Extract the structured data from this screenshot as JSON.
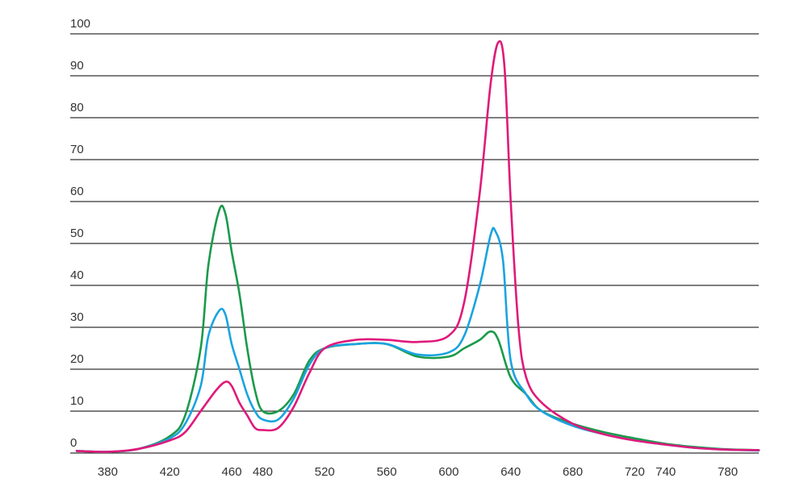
{
  "chart_data": {
    "type": "line",
    "title": "",
    "xlabel": "",
    "ylabel": "",
    "xlim": [
      360,
      800
    ],
    "ylim": [
      0,
      100
    ],
    "x_ticks": [
      380,
      420,
      460,
      480,
      520,
      560,
      600,
      640,
      680,
      720,
      740,
      780
    ],
    "y_ticks": [
      0,
      10,
      20,
      30,
      40,
      50,
      60,
      70,
      80,
      90,
      100
    ],
    "grid": "horizontal",
    "legend": "none",
    "series": [
      {
        "color": "#1a9a4a",
        "points": [
          [
            360,
            0.5
          ],
          [
            380,
            0.3
          ],
          [
            400,
            1
          ],
          [
            420,
            4
          ],
          [
            430,
            9
          ],
          [
            440,
            25
          ],
          [
            445,
            45
          ],
          [
            452,
            58
          ],
          [
            456,
            57
          ],
          [
            460,
            48
          ],
          [
            465,
            38
          ],
          [
            470,
            25
          ],
          [
            475,
            15
          ],
          [
            480,
            10
          ],
          [
            490,
            10
          ],
          [
            500,
            14
          ],
          [
            510,
            22
          ],
          [
            520,
            25
          ],
          [
            540,
            26
          ],
          [
            560,
            26
          ],
          [
            580,
            23
          ],
          [
            600,
            23
          ],
          [
            610,
            25
          ],
          [
            620,
            27
          ],
          [
            627,
            29
          ],
          [
            632,
            27
          ],
          [
            640,
            18
          ],
          [
            650,
            14
          ],
          [
            660,
            10
          ],
          [
            680,
            7
          ],
          [
            700,
            5
          ],
          [
            720,
            3.5
          ],
          [
            740,
            2.2
          ],
          [
            760,
            1.4
          ],
          [
            780,
            0.9
          ],
          [
            800,
            0.7
          ]
        ]
      },
      {
        "color": "#1aa3e0",
        "points": [
          [
            360,
            0.5
          ],
          [
            380,
            0.3
          ],
          [
            400,
            1
          ],
          [
            420,
            3.5
          ],
          [
            430,
            7
          ],
          [
            440,
            16
          ],
          [
            445,
            28
          ],
          [
            452,
            34
          ],
          [
            456,
            33
          ],
          [
            460,
            26
          ],
          [
            465,
            20
          ],
          [
            470,
            14
          ],
          [
            475,
            10
          ],
          [
            480,
            8
          ],
          [
            490,
            8
          ],
          [
            500,
            13
          ],
          [
            510,
            21
          ],
          [
            520,
            25
          ],
          [
            540,
            26
          ],
          [
            560,
            26
          ],
          [
            580,
            23.5
          ],
          [
            600,
            24
          ],
          [
            610,
            28
          ],
          [
            620,
            40
          ],
          [
            627,
            52
          ],
          [
            630,
            53
          ],
          [
            635,
            46
          ],
          [
            640,
            22
          ],
          [
            650,
            14
          ],
          [
            660,
            10
          ],
          [
            680,
            6.5
          ],
          [
            700,
            4.5
          ],
          [
            720,
            3
          ],
          [
            740,
            2
          ],
          [
            760,
            1.2
          ],
          [
            780,
            0.8
          ],
          [
            800,
            0.6
          ]
        ]
      },
      {
        "color": "#e0197a",
        "points": [
          [
            360,
            0.5
          ],
          [
            380,
            0.3
          ],
          [
            400,
            1
          ],
          [
            420,
            3
          ],
          [
            430,
            5
          ],
          [
            440,
            10
          ],
          [
            450,
            15
          ],
          [
            456,
            17
          ],
          [
            460,
            16
          ],
          [
            465,
            12
          ],
          [
            470,
            9
          ],
          [
            475,
            6
          ],
          [
            480,
            5.5
          ],
          [
            490,
            6
          ],
          [
            500,
            11
          ],
          [
            510,
            19
          ],
          [
            520,
            25
          ],
          [
            540,
            27
          ],
          [
            560,
            27
          ],
          [
            580,
            26.5
          ],
          [
            600,
            28
          ],
          [
            610,
            36
          ],
          [
            620,
            62
          ],
          [
            627,
            88
          ],
          [
            632,
            98
          ],
          [
            636,
            92
          ],
          [
            640,
            60
          ],
          [
            645,
            30
          ],
          [
            650,
            18
          ],
          [
            660,
            12
          ],
          [
            680,
            7
          ],
          [
            700,
            4.5
          ],
          [
            720,
            3
          ],
          [
            740,
            2
          ],
          [
            760,
            1.2
          ],
          [
            780,
            0.8
          ],
          [
            800,
            0.7
          ]
        ]
      }
    ]
  }
}
